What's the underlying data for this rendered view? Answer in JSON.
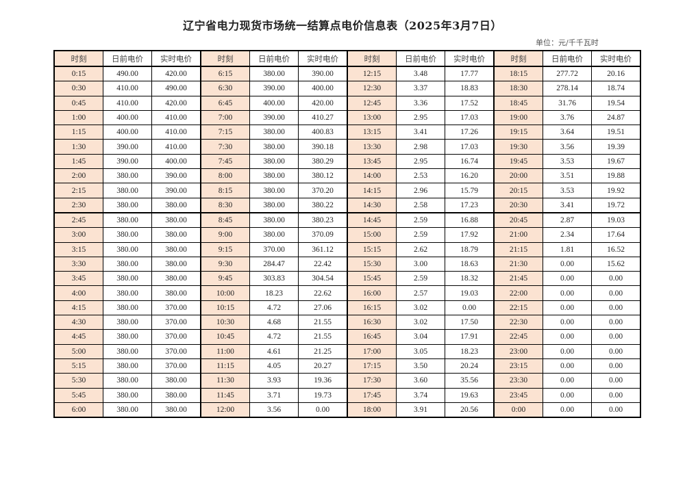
{
  "title": "辽宁省电力现货市场统一结算点电价信息表（2025年3月7日）",
  "unit": "单位：元/千千瓦时",
  "colors": {
    "time_cell_bg": "#fbe3d2",
    "border": "#000000"
  },
  "table": {
    "headers": [
      "时刻",
      "日前电价",
      "实时电价",
      "时刻",
      "日前电价",
      "实时电价",
      "时刻",
      "日前电价",
      "实时电价",
      "时刻",
      "日前电价",
      "实时电价"
    ],
    "rows": [
      [
        "0:15",
        "490.00",
        "420.00",
        "6:15",
        "380.00",
        "390.00",
        "12:15",
        "3.48",
        "17.77",
        "18:15",
        "277.72",
        "20.16"
      ],
      [
        "0:30",
        "410.00",
        "490.00",
        "6:30",
        "390.00",
        "400.00",
        "12:30",
        "3.37",
        "18.83",
        "18:30",
        "278.14",
        "18.74"
      ],
      [
        "0:45",
        "410.00",
        "420.00",
        "6:45",
        "400.00",
        "420.00",
        "12:45",
        "3.36",
        "17.52",
        "18:45",
        "31.76",
        "19.54"
      ],
      [
        "1:00",
        "400.00",
        "410.00",
        "7:00",
        "390.00",
        "410.27",
        "13:00",
        "2.95",
        "17.03",
        "19:00",
        "3.76",
        "24.87"
      ],
      [
        "1:15",
        "400.00",
        "410.00",
        "7:15",
        "380.00",
        "400.83",
        "13:15",
        "3.41",
        "17.26",
        "19:15",
        "3.64",
        "19.51"
      ],
      [
        "1:30",
        "390.00",
        "410.00",
        "7:30",
        "380.00",
        "390.18",
        "13:30",
        "2.98",
        "17.03",
        "19:30",
        "3.56",
        "19.39"
      ],
      [
        "1:45",
        "390.00",
        "400.00",
        "7:45",
        "380.00",
        "380.29",
        "13:45",
        "2.95",
        "16.74",
        "19:45",
        "3.53",
        "19.67"
      ],
      [
        "2:00",
        "380.00",
        "390.00",
        "8:00",
        "380.00",
        "380.12",
        "14:00",
        "2.53",
        "16.20",
        "20:00",
        "3.51",
        "19.88"
      ],
      [
        "2:15",
        "380.00",
        "390.00",
        "8:15",
        "380.00",
        "370.20",
        "14:15",
        "2.96",
        "15.79",
        "20:15",
        "3.53",
        "19.92"
      ],
      [
        "2:30",
        "380.00",
        "380.00",
        "8:30",
        "380.00",
        "380.22",
        "14:30",
        "2.58",
        "17.23",
        "20:30",
        "3.41",
        "19.72"
      ],
      [
        "2:45",
        "380.00",
        "380.00",
        "8:45",
        "380.00",
        "380.23",
        "14:45",
        "2.59",
        "16.88",
        "20:45",
        "2.87",
        "19.03"
      ],
      [
        "3:00",
        "380.00",
        "380.00",
        "9:00",
        "380.00",
        "370.09",
        "15:00",
        "2.59",
        "17.92",
        "21:00",
        "2.34",
        "17.64"
      ],
      [
        "3:15",
        "380.00",
        "380.00",
        "9:15",
        "370.00",
        "361.12",
        "15:15",
        "2.62",
        "18.79",
        "21:15",
        "1.81",
        "16.52"
      ],
      [
        "3:30",
        "380.00",
        "380.00",
        "9:30",
        "284.47",
        "22.42",
        "15:30",
        "3.00",
        "18.63",
        "21:30",
        "0.00",
        "15.62"
      ],
      [
        "3:45",
        "380.00",
        "380.00",
        "9:45",
        "303.83",
        "304.54",
        "15:45",
        "2.59",
        "18.32",
        "21:45",
        "0.00",
        "0.00"
      ],
      [
        "4:00",
        "380.00",
        "380.00",
        "10:00",
        "18.23",
        "22.62",
        "16:00",
        "2.57",
        "19.03",
        "22:00",
        "0.00",
        "0.00"
      ],
      [
        "4:15",
        "380.00",
        "370.00",
        "10:15",
        "4.72",
        "27.06",
        "16:15",
        "3.02",
        "0.00",
        "22:15",
        "0.00",
        "0.00"
      ],
      [
        "4:30",
        "380.00",
        "370.00",
        "10:30",
        "4.68",
        "21.55",
        "16:30",
        "3.02",
        "17.50",
        "22:30",
        "0.00",
        "0.00"
      ],
      [
        "4:45",
        "380.00",
        "370.00",
        "10:45",
        "4.72",
        "21.55",
        "16:45",
        "3.04",
        "17.91",
        "22:45",
        "0.00",
        "0.00"
      ],
      [
        "5:00",
        "380.00",
        "370.00",
        "11:00",
        "4.61",
        "21.25",
        "17:00",
        "3.05",
        "18.23",
        "23:00",
        "0.00",
        "0.00"
      ],
      [
        "5:15",
        "380.00",
        "370.00",
        "11:15",
        "4.05",
        "20.27",
        "17:15",
        "3.50",
        "20.24",
        "23:15",
        "0.00",
        "0.00"
      ],
      [
        "5:30",
        "380.00",
        "380.00",
        "11:30",
        "3.93",
        "19.36",
        "17:30",
        "3.60",
        "35.56",
        "23:30",
        "0.00",
        "0.00"
      ],
      [
        "5:45",
        "380.00",
        "380.00",
        "11:45",
        "3.71",
        "19.73",
        "17:45",
        "3.74",
        "19.63",
        "23:45",
        "0.00",
        "0.00"
      ],
      [
        "6:00",
        "380.00",
        "380.00",
        "12:00",
        "3.56",
        "0.00",
        "18:00",
        "3.91",
        "20.56",
        "0:00",
        "0.00",
        "0.00"
      ]
    ]
  }
}
